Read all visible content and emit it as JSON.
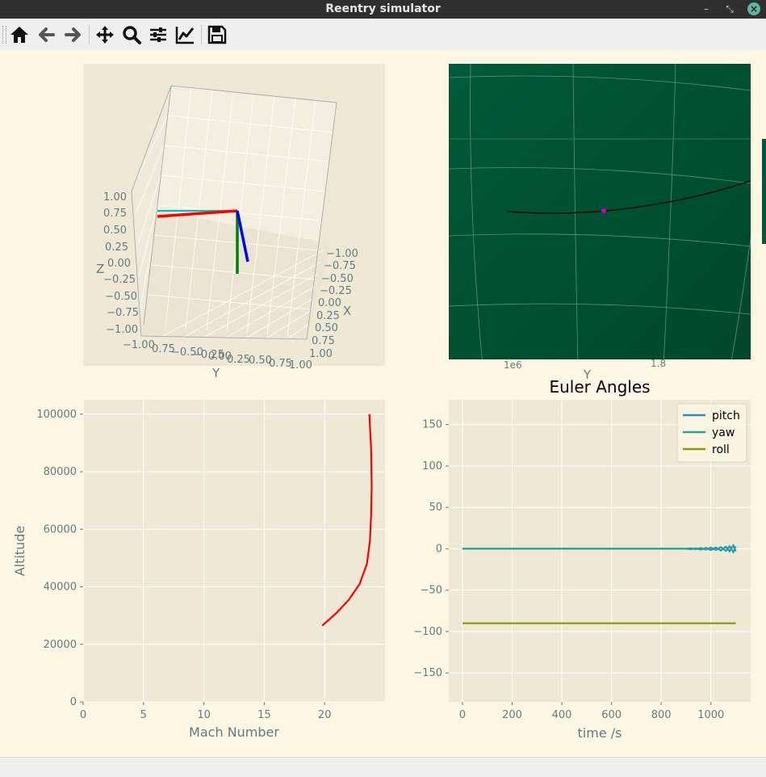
{
  "window": {
    "title": "Reentry simulator"
  },
  "toolbar": {
    "buttons": [
      {
        "name": "home-icon"
      },
      {
        "name": "back-icon"
      },
      {
        "name": "forward-icon"
      },
      {
        "name": "pan-icon"
      },
      {
        "name": "zoom-icon"
      },
      {
        "name": "subplots-icon"
      },
      {
        "name": "axes-edit-icon"
      },
      {
        "name": "save-icon"
      }
    ]
  },
  "colors": {
    "figure_bg": "#fdf6e3",
    "axes_bg": "#eee8d5",
    "grid": "#ffffff",
    "tick_text": "#657b83",
    "map_green": "#00573a",
    "trajectory": "#000000",
    "vehicle": "#c000c0",
    "body_x": "#0000ff",
    "body_y": "#008000",
    "body_z": "#ff0000",
    "body_aux": "#00bfbf"
  },
  "attitude_3d": {
    "xlabel": "X",
    "ylabel": "Y",
    "zlabel": "Z",
    "x_ticks": [
      "−1.00",
      "−0.75",
      "−0.50",
      "−0.25",
      "0.00",
      "0.25",
      "0.50",
      "0.75",
      "1.00"
    ],
    "y_ticks": [
      "−1.00",
      "0.75",
      "−0.50",
      "−0.25",
      "0.00",
      "0.25",
      "0.50",
      "0.75",
      "1.00"
    ],
    "z_ticks": [
      "1.00",
      "0.75",
      "0.50",
      "0.25",
      "0.00",
      "−0.25",
      "−0.50",
      "−0.75",
      "−1.00"
    ]
  },
  "ground_track": {
    "xlabel": "Y",
    "tick_partial": [
      "1e6",
      "1.8"
    ]
  },
  "chart_data": [
    {
      "type": "line",
      "xlabel": "Mach Number",
      "ylabel": "Altitude",
      "xlim": [
        0,
        25
      ],
      "ylim": [
        0,
        105000
      ],
      "x_ticks": [
        0,
        5,
        10,
        15,
        20
      ],
      "y_ticks": [
        0,
        20000,
        40000,
        60000,
        80000,
        100000
      ],
      "series": [
        {
          "color": "#ff0000",
          "x": [
            19.8,
            21,
            22,
            22.9,
            23.5,
            23.75,
            23.85,
            23.9,
            23.85,
            23.7
          ],
          "y": [
            26500,
            31000,
            35500,
            41000,
            48000,
            56000,
            65000,
            75000,
            88000,
            100000
          ]
        }
      ]
    },
    {
      "type": "line",
      "title": "Euler Angles",
      "xlabel": "time /s",
      "ylabel": "",
      "xlim": [
        -55,
        1160
      ],
      "ylim": [
        -185,
        180
      ],
      "x_ticks": [
        0,
        200,
        400,
        600,
        800,
        1000
      ],
      "y_ticks": [
        150,
        100,
        50,
        0,
        -50,
        -100,
        -150
      ],
      "legend_position": "top-right",
      "series": [
        {
          "name": "pitch",
          "color": "#268bd2",
          "x": [
            0,
            900,
            920,
            940,
            960,
            980,
            1000,
            1020,
            1040,
            1060,
            1075,
            1090,
            1100
          ],
          "y": [
            0,
            0,
            -0.5,
            0.5,
            -1,
            1,
            -1.5,
            1.5,
            -2,
            2.5,
            -3,
            4,
            -3
          ]
        },
        {
          "name": "yaw",
          "color": "#2aa198",
          "x": [
            0,
            900,
            920,
            940,
            960,
            980,
            1000,
            1020,
            1040,
            1060,
            1075,
            1090,
            1100
          ],
          "y": [
            0,
            0,
            0.5,
            -0.5,
            1,
            -1,
            1.5,
            -1.5,
            2,
            -2.5,
            3,
            -4,
            3
          ]
        },
        {
          "name": "roll",
          "color": "#859900",
          "x": [
            0,
            1100
          ],
          "y": [
            -90,
            -90
          ]
        }
      ]
    }
  ]
}
